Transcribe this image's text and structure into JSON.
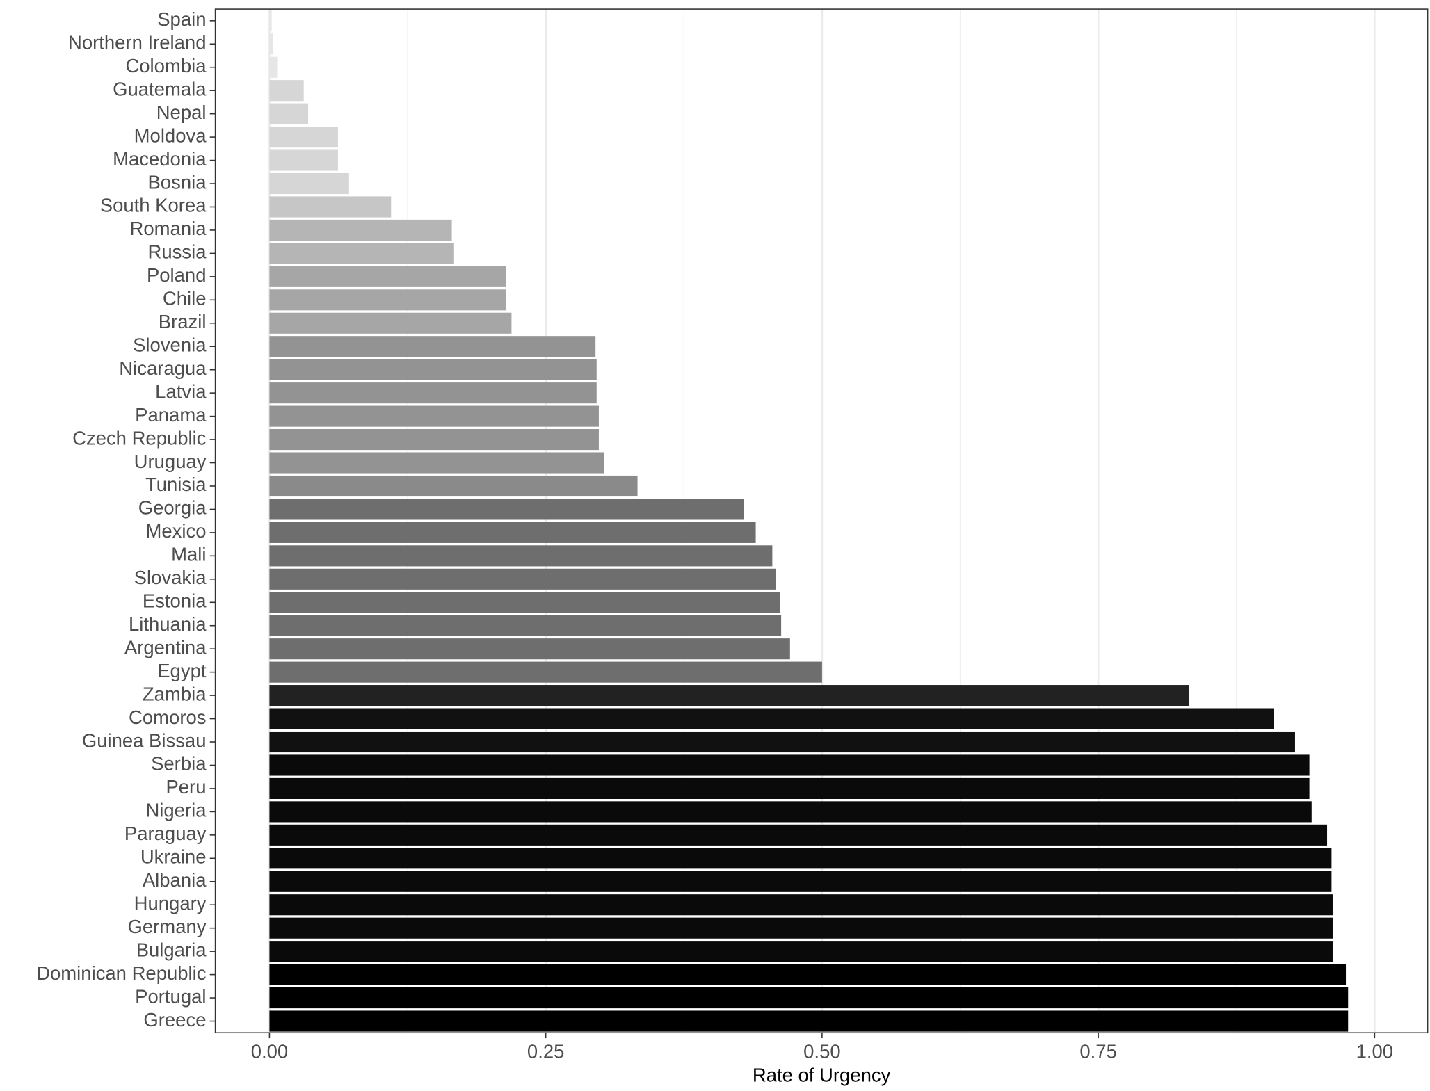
{
  "chart_data": {
    "type": "barh",
    "x_label": "Rate of Urgency",
    "categories": [
      "Spain",
      "Northern Ireland",
      "Colombia",
      "Guatemala",
      "Nepal",
      "Moldova",
      "Macedonia",
      "Bosnia",
      "South Korea",
      "Romania",
      "Russia",
      "Poland",
      "Chile",
      "Brazil",
      "Slovenia",
      "Nicaragua",
      "Latvia",
      "Panama",
      "Czech Republic",
      "Uruguay",
      "Tunisia",
      "Georgia",
      "Mexico",
      "Mali",
      "Slovakia",
      "Estonia",
      "Lithuania",
      "Argentina",
      "Egypt",
      "Zambia",
      "Comoros",
      "Guinea Bissau",
      "Serbia",
      "Peru",
      "Nigeria",
      "Paraguay",
      "Ukraine",
      "Albania",
      "Hungary",
      "Germany",
      "Bulgaria",
      "Dominican Republic",
      "Portugal",
      "Greece"
    ],
    "values": [
      0.002,
      0.003,
      0.007,
      0.031,
      0.035,
      0.062,
      0.062,
      0.072,
      0.11,
      0.165,
      0.167,
      0.214,
      0.214,
      0.219,
      0.295,
      0.296,
      0.296,
      0.298,
      0.298,
      0.303,
      0.333,
      0.429,
      0.44,
      0.455,
      0.458,
      0.462,
      0.463,
      0.471,
      0.5,
      0.832,
      0.909,
      0.928,
      0.941,
      0.941,
      0.943,
      0.957,
      0.961,
      0.961,
      0.962,
      0.962,
      0.962,
      0.974,
      0.976,
      0.976
    ],
    "colors": [
      "#e6e6e6",
      "#e6e6e6",
      "#e6e6e6",
      "#d6d6d6",
      "#d6d6d6",
      "#d6d6d6",
      "#d6d6d6",
      "#d6d6d6",
      "#c6c6c6",
      "#b5b5b5",
      "#b5b5b5",
      "#a6a6a6",
      "#a6a6a6",
      "#a6a6a6",
      "#939393",
      "#939393",
      "#939393",
      "#939393",
      "#939393",
      "#939393",
      "#8a8a8a",
      "#6e6e6e",
      "#6e6e6e",
      "#6e6e6e",
      "#6e6e6e",
      "#6e6e6e",
      "#6e6e6e",
      "#6e6e6e",
      "#6e6e6e",
      "#222222",
      "#111111",
      "#111111",
      "#0a0a0a",
      "#0a0a0a",
      "#0a0a0a",
      "#0a0a0a",
      "#0a0a0a",
      "#0a0a0a",
      "#0a0a0a",
      "#0a0a0a",
      "#0a0a0a",
      "#000000",
      "#000000",
      "#000000"
    ],
    "xlim": [
      -0.049,
      1.048
    ],
    "xticks": [
      {
        "value": 0,
        "label": "0.00"
      },
      0.25,
      {
        "value": 0.5,
        "label": "0.50"
      },
      0.75,
      {
        "value": 1,
        "label": "1.00"
      }
    ],
    "minor_grid": [
      0.125,
      0.375,
      0.625,
      0.875
    ],
    "grid": true
  }
}
